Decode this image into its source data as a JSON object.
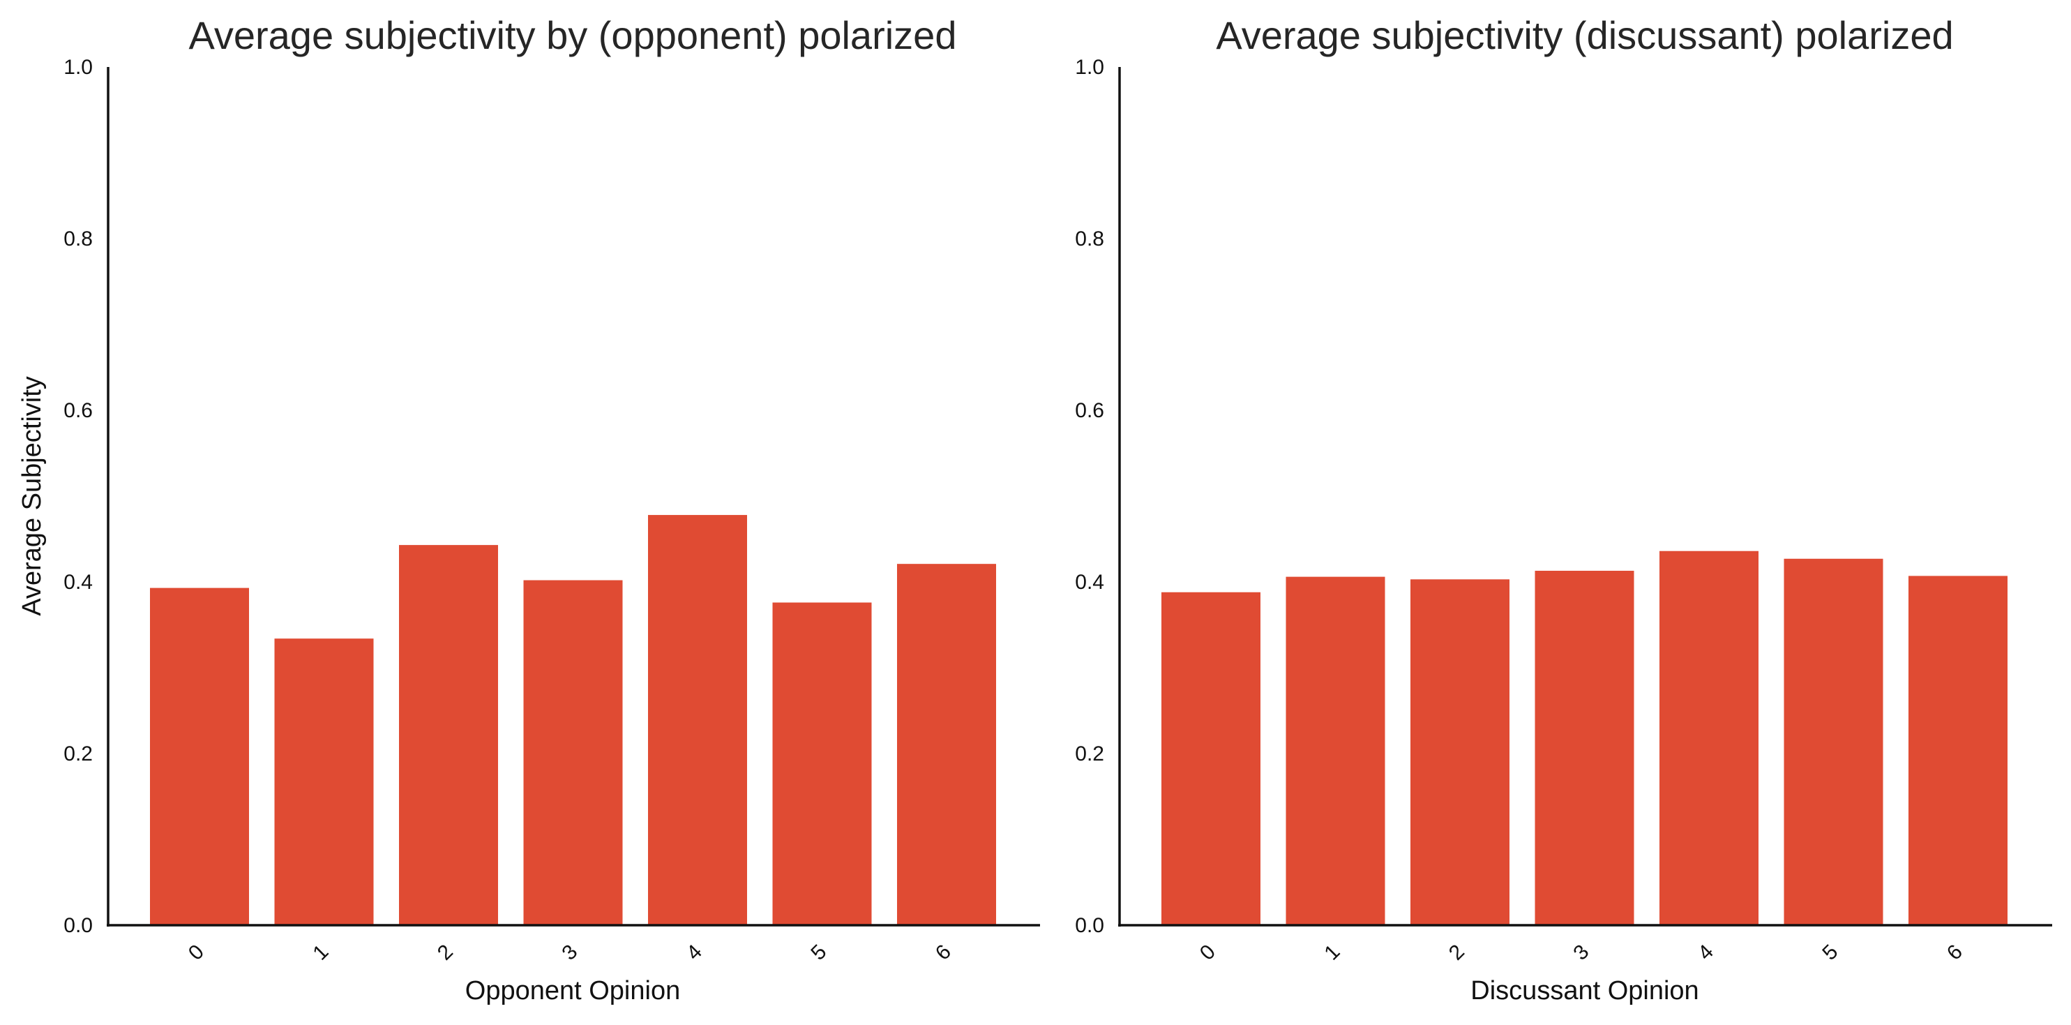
{
  "chart_data": [
    {
      "type": "bar",
      "title": "Average subjectivity by (opponent) polarized",
      "xlabel": "Opponent Opinion",
      "ylabel": "Average Subjectivity",
      "categories": [
        "0",
        "1",
        "2",
        "3",
        "4",
        "5",
        "6"
      ],
      "values": [
        0.393,
        0.334,
        0.443,
        0.402,
        0.478,
        0.376,
        0.421
      ],
      "ylim": [
        0,
        1.0
      ],
      "yticks": [
        "0.0",
        "0.2",
        "0.4",
        "0.6",
        "0.8",
        "1.0"
      ],
      "bar_color": "#e04b33",
      "grid": false,
      "x_tick_rotation": "45"
    },
    {
      "type": "bar",
      "title": "Average subjectivity (discussant) polarized",
      "xlabel": "Discussant Opinion",
      "ylabel": "",
      "categories": [
        "0",
        "1",
        "2",
        "3",
        "4",
        "5",
        "6"
      ],
      "values": [
        0.388,
        0.406,
        0.403,
        0.413,
        0.436,
        0.427,
        0.407
      ],
      "ylim": [
        0,
        1.0
      ],
      "yticks": [
        "0.0",
        "0.2",
        "0.4",
        "0.6",
        "0.8",
        "1.0"
      ],
      "bar_color": "#e04b33",
      "grid": false,
      "x_tick_rotation": "45"
    }
  ]
}
